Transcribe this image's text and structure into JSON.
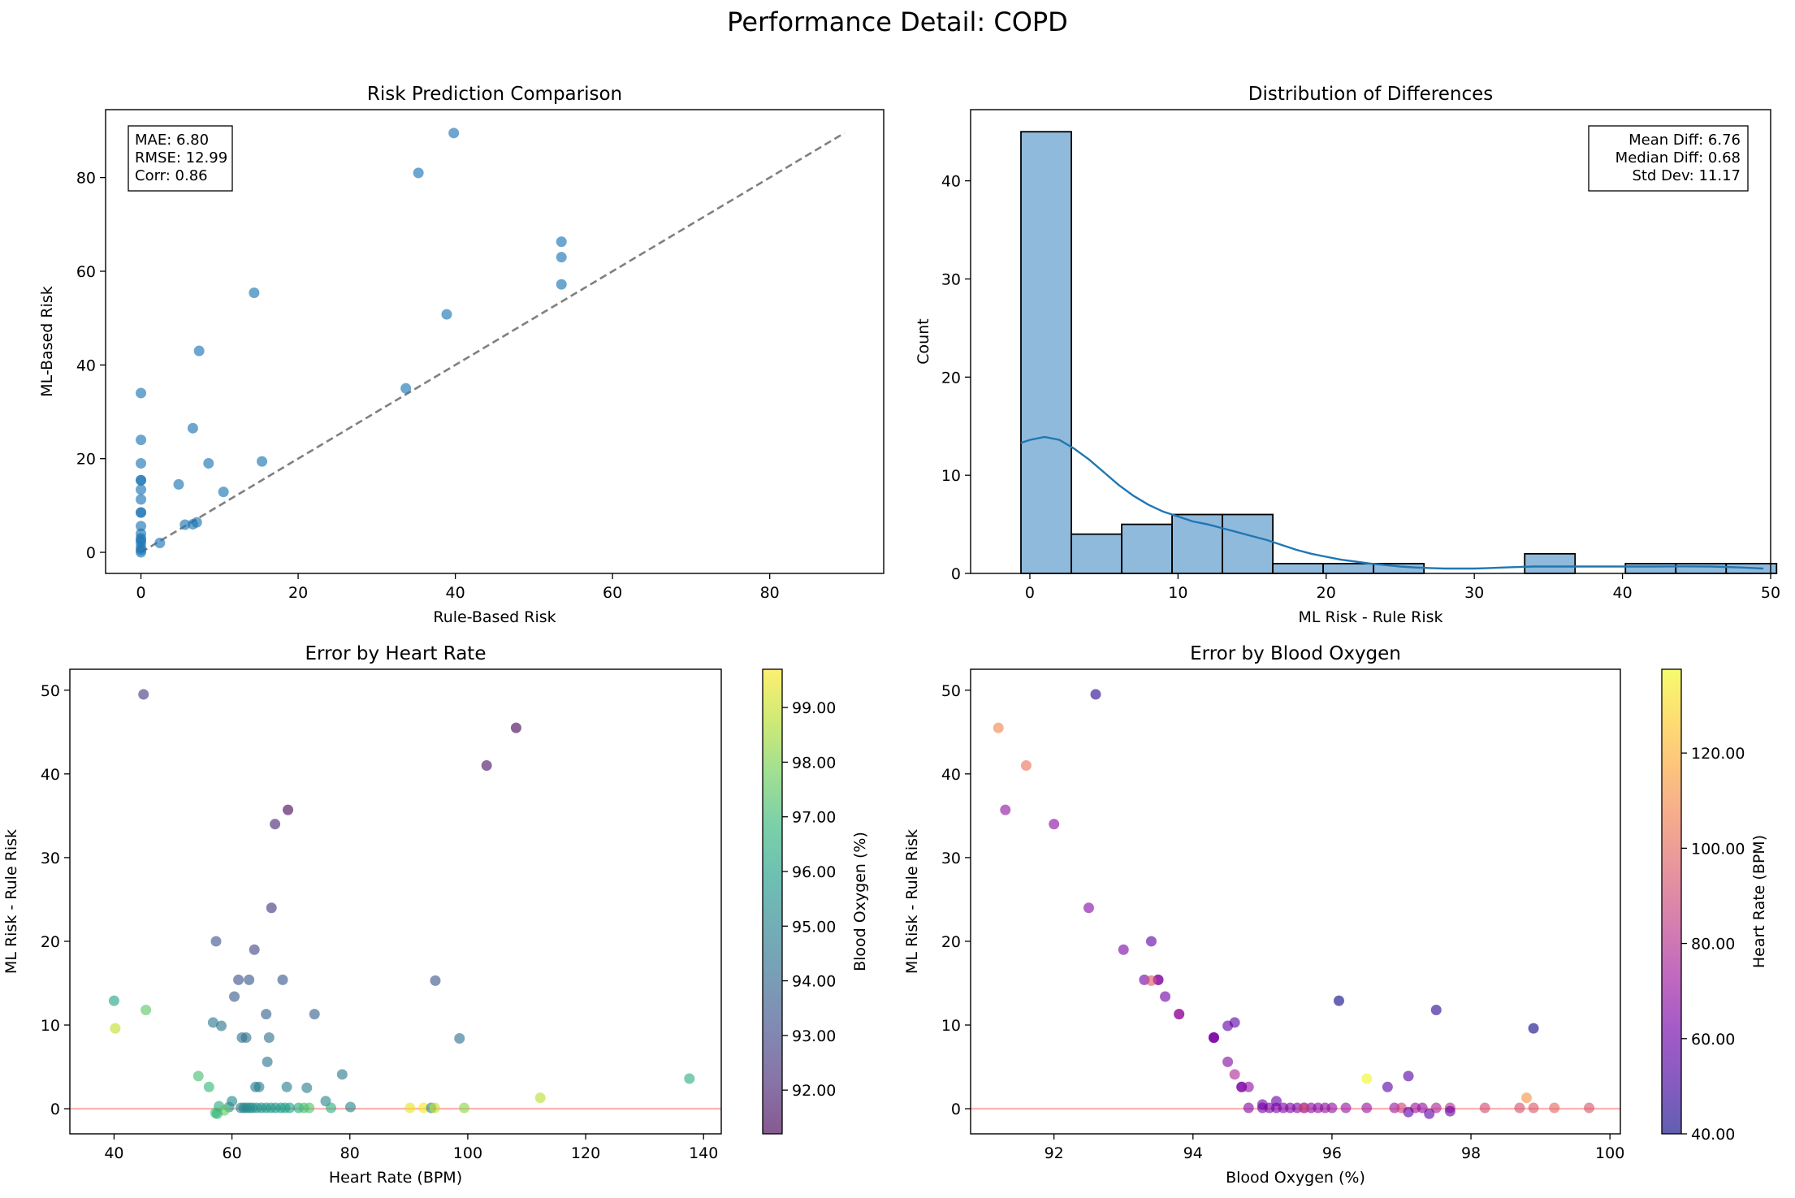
{
  "title": "Performance Detail: COPD",
  "chart_data": [
    {
      "type": "scatter",
      "title": "Risk Prediction Comparison",
      "xlabel": "Rule-Based Risk",
      "ylabel": "ML-Based Risk",
      "xlim": [
        -4.5,
        94.5
      ],
      "ylim": [
        -4.5,
        94.5
      ],
      "xticks": [
        "0",
        "20",
        "40",
        "60",
        "80"
      ],
      "yticks": [
        "0",
        "20",
        "40",
        "60",
        "80"
      ],
      "reference_line": {
        "style": "dashed",
        "color": "#808080",
        "from": [
          0,
          0
        ],
        "to": [
          89.5,
          89.5
        ]
      },
      "color": "#1f77b4",
      "annotation": [
        "MAE: 6.80",
        "RMSE: 12.99",
        "Corr: 0.86"
      ],
      "points": [
        [
          0,
          0
        ],
        [
          0,
          0.5
        ],
        [
          0,
          1
        ],
        [
          0,
          2
        ],
        [
          0,
          2.6
        ],
        [
          0,
          3
        ],
        [
          0,
          4
        ],
        [
          0,
          5.6
        ],
        [
          0,
          8.5
        ],
        [
          0,
          8.5
        ],
        [
          0,
          11.3
        ],
        [
          0,
          13.4
        ],
        [
          0,
          15.4
        ],
        [
          0,
          15.4
        ],
        [
          0,
          19
        ],
        [
          0,
          24
        ],
        [
          0,
          34
        ],
        [
          2.4,
          2
        ],
        [
          4.8,
          14.5
        ],
        [
          5.6,
          5.9
        ],
        [
          6.6,
          6
        ],
        [
          6.6,
          26.5
        ],
        [
          7.1,
          6.4
        ],
        [
          7.4,
          43
        ],
        [
          8.6,
          19
        ],
        [
          10.5,
          12.9
        ],
        [
          14.4,
          55.4
        ],
        [
          15.4,
          19.4
        ],
        [
          33.7,
          35
        ],
        [
          35.3,
          81
        ],
        [
          38.9,
          50.8
        ],
        [
          39.8,
          89.5
        ],
        [
          53.5,
          57.2
        ],
        [
          53.5,
          63
        ],
        [
          53.5,
          66.3
        ]
      ]
    },
    {
      "type": "bar",
      "title": "Distribution of Differences",
      "xlabel": "ML Risk - Rule Risk",
      "ylabel": "Count",
      "xlim": [
        -4.0,
        50.0
      ],
      "ylim": [
        0,
        47.25
      ],
      "xticks": [
        "0",
        "10",
        "20",
        "30",
        "40",
        "50"
      ],
      "yticks": [
        "0",
        "10",
        "20",
        "30",
        "40"
      ],
      "bin_start": -0.6,
      "bin_width": 3.4,
      "counts": [
        45,
        4,
        5,
        6,
        6,
        1,
        1,
        1,
        0,
        0,
        2,
        0,
        1,
        1,
        1
      ],
      "bar_color": "#8fbadb",
      "kde_color": "#1f77b4",
      "kde": [
        [
          -0.6,
          13.3
        ],
        [
          0,
          13.6
        ],
        [
          1,
          13.9
        ],
        [
          2,
          13.6
        ],
        [
          3,
          12.7
        ],
        [
          4,
          11.6
        ],
        [
          5,
          10.3
        ],
        [
          6,
          9.0
        ],
        [
          7,
          7.9
        ],
        [
          8,
          7.0
        ],
        [
          9,
          6.3
        ],
        [
          10,
          5.8
        ],
        [
          11,
          5.3
        ],
        [
          12,
          5.0
        ],
        [
          13,
          4.6
        ],
        [
          14,
          4.2
        ],
        [
          15,
          3.8
        ],
        [
          16,
          3.4
        ],
        [
          17,
          2.9
        ],
        [
          18,
          2.4
        ],
        [
          19,
          2.0
        ],
        [
          20,
          1.7
        ],
        [
          21,
          1.4
        ],
        [
          22,
          1.2
        ],
        [
          23,
          1.0
        ],
        [
          24,
          0.85
        ],
        [
          25,
          0.7
        ],
        [
          26,
          0.6
        ],
        [
          27,
          0.55
        ],
        [
          28,
          0.5
        ],
        [
          29,
          0.5
        ],
        [
          30,
          0.5
        ],
        [
          31,
          0.55
        ],
        [
          32,
          0.6
        ],
        [
          33,
          0.65
        ],
        [
          34,
          0.7
        ],
        [
          35,
          0.7
        ],
        [
          36,
          0.7
        ],
        [
          37,
          0.7
        ],
        [
          38,
          0.7
        ],
        [
          39,
          0.7
        ],
        [
          40,
          0.7
        ],
        [
          42,
          0.7
        ],
        [
          44,
          0.72
        ],
        [
          46,
          0.7
        ],
        [
          48,
          0.6
        ],
        [
          49.5,
          0.5
        ]
      ],
      "annotation": [
        "Mean Diff: 6.76",
        "Median Diff: 0.68",
        "Std Dev: 11.17"
      ]
    },
    {
      "type": "scatter",
      "title": "Error by Heart Rate",
      "xlabel": "Heart Rate (BPM)",
      "ylabel": "ML Risk - Rule Risk",
      "xlim": [
        32.5,
        143
      ],
      "ylim": [
        -3,
        52.5
      ],
      "xticks": [
        "40",
        "60",
        "80",
        "100",
        "120",
        "140"
      ],
      "yticks": [
        "0",
        "10",
        "20",
        "30",
        "40",
        "50"
      ],
      "reference_line": {
        "color": "#ffb3b3",
        "y": 0
      },
      "colormap": "viridis",
      "colorbar": {
        "label": "Blood Oxygen (%)",
        "range": [
          91.2,
          99.7
        ],
        "ticks": [
          "92.00",
          "93.00",
          "94.00",
          "95.00",
          "96.00",
          "97.00",
          "98.00",
          "99.00"
        ]
      },
      "points": [
        [
          45,
          49.5,
          92.6
        ],
        [
          108.2,
          45.5,
          91.2
        ],
        [
          103.2,
          41,
          91.6
        ],
        [
          69.5,
          35.7,
          91.3
        ],
        [
          67.3,
          34,
          92.0
        ],
        [
          66.7,
          24,
          92.5
        ],
        [
          57.3,
          20,
          93.4
        ],
        [
          63.8,
          19,
          93.0
        ],
        [
          61.1,
          15.4,
          93.3
        ],
        [
          62.9,
          15.4,
          93.5
        ],
        [
          68.6,
          15.4,
          93.5
        ],
        [
          94.5,
          15.3,
          93.4
        ],
        [
          60.4,
          13.4,
          93.6
        ],
        [
          40,
          12.9,
          96.1
        ],
        [
          45.4,
          11.8,
          97.5
        ],
        [
          65.8,
          11.3,
          93.8
        ],
        [
          74,
          11.3,
          93.8
        ],
        [
          56.8,
          10.3,
          94.6
        ],
        [
          58.2,
          9.9,
          94.5
        ],
        [
          40.2,
          9.6,
          98.9
        ],
        [
          61.7,
          8.5,
          94.3
        ],
        [
          62.4,
          8.5,
          94.3
        ],
        [
          66.3,
          8.5,
          94.3
        ],
        [
          98.6,
          8.4,
          94.3
        ],
        [
          66,
          5.6,
          94.5
        ],
        [
          54.3,
          3.9,
          97.1
        ],
        [
          137.6,
          3.6,
          96.5
        ],
        [
          78.7,
          4.1,
          94.6
        ],
        [
          56.1,
          2.6,
          96.8
        ],
        [
          64,
          2.6,
          94.7
        ],
        [
          64.6,
          2.6,
          94.7
        ],
        [
          69.3,
          2.6,
          94.8
        ],
        [
          72.7,
          2.5,
          94.8
        ],
        [
          112.3,
          1.3,
          98.8
        ],
        [
          60,
          0.9,
          95.2
        ],
        [
          75.9,
          0.9,
          95.1
        ],
        [
          57.8,
          0.3,
          96.4
        ],
        [
          59.5,
          0.2,
          95.5
        ],
        [
          61.5,
          0.1,
          95.0
        ],
        [
          62,
          0.1,
          95.0
        ],
        [
          62.5,
          0.1,
          95.1
        ],
        [
          63,
          0.1,
          95.2
        ],
        [
          63.5,
          0.1,
          95.3
        ],
        [
          64.2,
          0.1,
          95.4
        ],
        [
          65,
          0.1,
          95.5
        ],
        [
          65.8,
          0.1,
          95.6
        ],
        [
          66.6,
          0.1,
          95.7
        ],
        [
          67.4,
          0.1,
          95.8
        ],
        [
          68.3,
          0.1,
          95.9
        ],
        [
          69,
          0.1,
          96.0
        ],
        [
          69.8,
          0.1,
          96.0
        ],
        [
          71.3,
          0.1,
          96.4
        ],
        [
          72.2,
          0.1,
          97.1
        ],
        [
          73.1,
          0.1,
          97.3
        ],
        [
          76.8,
          0.1,
          96.6
        ],
        [
          80.1,
          0.2,
          95.0
        ],
        [
          90.2,
          0.1,
          99.4
        ],
        [
          92.5,
          0.1,
          99.6
        ],
        [
          93.8,
          0.1,
          95.2
        ],
        [
          94.4,
          0.1,
          99.0
        ],
        [
          99.4,
          0.1,
          98.2
        ],
        [
          57.2,
          -0.5,
          97.0
        ],
        [
          58.7,
          -0.2,
          97.6
        ],
        [
          57.5,
          -0.6,
          96.8
        ]
      ]
    },
    {
      "type": "scatter",
      "title": "Error by Blood Oxygen",
      "xlabel": "Blood Oxygen (%)",
      "ylabel": "ML Risk - Rule Risk",
      "xlim": [
        90.8,
        100.15
      ],
      "ylim": [
        -3,
        52.5
      ],
      "xticks": [
        "92",
        "94",
        "96",
        "98",
        "100"
      ],
      "yticks": [
        "0",
        "10",
        "20",
        "30",
        "40",
        "50"
      ],
      "reference_line": {
        "color": "#ffb3b3",
        "y": 0
      },
      "colormap": "plasma",
      "colorbar": {
        "label": "Heart Rate (BPM)",
        "range": [
          40,
          137.6
        ],
        "ticks": [
          "40.00",
          "60.00",
          "80.00",
          "100.00",
          "120.00"
        ]
      },
      "points": [
        [
          92.6,
          49.5,
          45
        ],
        [
          91.2,
          45.5,
          108.2
        ],
        [
          91.6,
          41,
          103.2
        ],
        [
          91.3,
          35.7,
          69.5
        ],
        [
          92.0,
          34,
          67.3
        ],
        [
          92.5,
          24,
          66.7
        ],
        [
          93.4,
          20,
          57.3
        ],
        [
          93.0,
          19,
          63.8
        ],
        [
          93.3,
          15.4,
          61.1
        ],
        [
          93.5,
          15.4,
          62.9
        ],
        [
          93.5,
          15.4,
          68.6
        ],
        [
          93.4,
          15.3,
          94.5
        ],
        [
          93.6,
          13.4,
          60.4
        ],
        [
          96.1,
          12.9,
          40
        ],
        [
          97.5,
          11.8,
          45.4
        ],
        [
          93.8,
          11.3,
          65.8
        ],
        [
          93.8,
          11.3,
          74
        ],
        [
          94.6,
          10.3,
          56.8
        ],
        [
          94.5,
          9.9,
          58.2
        ],
        [
          98.9,
          9.6,
          40.2
        ],
        [
          94.3,
          8.5,
          61.7
        ],
        [
          94.3,
          8.5,
          62.4
        ],
        [
          94.3,
          8.5,
          66.3
        ],
        [
          94.5,
          5.6,
          66
        ],
        [
          97.1,
          3.9,
          54.3
        ],
        [
          96.5,
          3.6,
          137.6
        ],
        [
          94.6,
          4.1,
          78.7
        ],
        [
          96.8,
          2.6,
          56.1
        ],
        [
          94.7,
          2.6,
          64
        ],
        [
          94.7,
          2.6,
          64.6
        ],
        [
          94.8,
          2.6,
          69.3
        ],
        [
          98.8,
          1.3,
          112.3
        ],
        [
          95.2,
          0.9,
          60
        ],
        [
          95.0,
          0.5,
          62
        ],
        [
          94.8,
          0.1,
          66
        ],
        [
          95.0,
          0.1,
          61.5
        ],
        [
          95.1,
          0.1,
          62.5
        ],
        [
          95.2,
          0.1,
          63
        ],
        [
          95.3,
          0.1,
          63.5
        ],
        [
          95.4,
          0.1,
          64.2
        ],
        [
          95.5,
          0.1,
          65
        ],
        [
          95.6,
          0.1,
          65.8
        ],
        [
          95.7,
          0.1,
          66.6
        ],
        [
          95.8,
          0.1,
          67.4
        ],
        [
          95.9,
          0.1,
          68.3
        ],
        [
          96.0,
          0.1,
          69
        ],
        [
          96.2,
          0.1,
          70.5
        ],
        [
          96.5,
          0.1,
          71.3
        ],
        [
          96.9,
          0.1,
          72.2
        ],
        [
          97.0,
          0.1,
          88
        ],
        [
          97.2,
          0.1,
          73.1
        ],
        [
          97.3,
          0.1,
          69.8
        ],
        [
          97.5,
          0.1,
          76.8
        ],
        [
          97.7,
          0.1,
          80.1
        ],
        [
          98.2,
          0.1,
          90.2
        ],
        [
          98.7,
          0.1,
          92.5
        ],
        [
          98.9,
          0.1,
          94.4
        ],
        [
          99.2,
          0.1,
          99.4
        ],
        [
          99.7,
          0.1,
          93.8
        ],
        [
          95.6,
          0.1,
          90.2
        ],
        [
          97.1,
          -0.4,
          57.2
        ],
        [
          97.4,
          -0.6,
          57.5
        ],
        [
          97.7,
          -0.3,
          58.7
        ]
      ]
    }
  ]
}
